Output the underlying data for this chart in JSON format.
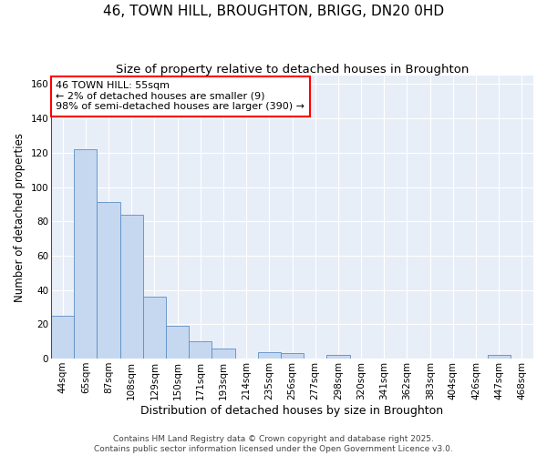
{
  "title": "46, TOWN HILL, BROUGHTON, BRIGG, DN20 0HD",
  "subtitle": "Size of property relative to detached houses in Broughton",
  "xlabel": "Distribution of detached houses by size in Broughton",
  "ylabel": "Number of detached properties",
  "categories": [
    "44sqm",
    "65sqm",
    "87sqm",
    "108sqm",
    "129sqm",
    "150sqm",
    "171sqm",
    "193sqm",
    "214sqm",
    "235sqm",
    "256sqm",
    "277sqm",
    "298sqm",
    "320sqm",
    "341sqm",
    "362sqm",
    "383sqm",
    "404sqm",
    "426sqm",
    "447sqm",
    "468sqm"
  ],
  "values": [
    25,
    122,
    91,
    84,
    36,
    19,
    10,
    6,
    0,
    4,
    3,
    0,
    2,
    0,
    0,
    0,
    0,
    0,
    0,
    2,
    0
  ],
  "bar_color": "#c5d8f0",
  "bar_edge_color": "#5b8ec4",
  "ylim": [
    0,
    165
  ],
  "yticks": [
    0,
    20,
    40,
    60,
    80,
    100,
    120,
    140,
    160
  ],
  "annotation_text": "46 TOWN HILL: 55sqm\n← 2% of detached houses are smaller (9)\n98% of semi-detached houses are larger (390) →",
  "marker_color": "#ff0000",
  "background_color": "#e8eef8",
  "grid_color": "#ffffff",
  "footer": "Contains HM Land Registry data © Crown copyright and database right 2025.\nContains public sector information licensed under the Open Government Licence v3.0.",
  "title_fontsize": 11,
  "subtitle_fontsize": 9.5,
  "ylabel_fontsize": 8.5,
  "xlabel_fontsize": 9,
  "tick_fontsize": 7.5,
  "annotation_fontsize": 8,
  "footer_fontsize": 6.5
}
